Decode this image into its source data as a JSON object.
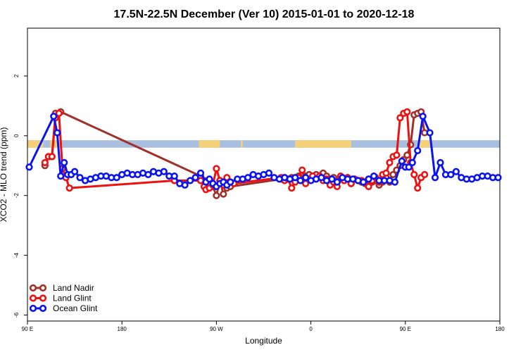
{
  "chart_data": {
    "type": "line",
    "title": "17.5N-22.5N December (Ver 10)   2015-01-01 to 2020-12-18",
    "xlabel": "Longitude",
    "ylabel": "XCO2 - MLO trend (ppm)",
    "xlim": [
      -90,
      180
    ],
    "ylim": [
      -6.2,
      3.6
    ],
    "x_ticks": [
      {
        "value": -90,
        "label": "90 E"
      },
      {
        "value": -36,
        "label": "180"
      },
      {
        "value": 18,
        "label": "90 W"
      },
      {
        "value": 72,
        "label": "0"
      },
      {
        "value": 126,
        "label": "90 E"
      },
      {
        "value": 180,
        "label": "180"
      }
    ],
    "y_ticks": [
      {
        "value": -6,
        "label": "-6"
      },
      {
        "value": -4,
        "label": "-4"
      },
      {
        "value": -2,
        "label": "-2"
      },
      {
        "value": 0,
        "label": "0"
      },
      {
        "value": 2,
        "label": "2"
      }
    ],
    "grid": false,
    "legend_position": "bottom-left",
    "land_ocean_strip": {
      "y_range": [
        -0.4,
        -0.15
      ],
      "ocean_color": "#a8bfe0",
      "land_color": "#f5d27a",
      "land_segments": [
        [
          -90,
          -81
        ],
        [
          -77,
          -71
        ],
        [
          8,
          20
        ],
        [
          32,
          33
        ],
        [
          63,
          95
        ],
        [
          134,
          140
        ]
      ]
    },
    "series": [
      {
        "name": "Land Nadir",
        "color": "#a0302a",
        "x": [
          -80,
          -78,
          -76,
          -74,
          -71,
          9,
          11,
          12,
          14,
          16,
          18,
          20,
          22,
          24,
          26,
          55,
          57,
          59,
          61,
          63,
          65,
          67,
          69,
          71,
          73,
          75,
          77,
          79,
          81,
          83,
          85,
          87,
          89,
          91,
          93,
          95,
          97,
          99,
          101,
          103,
          105,
          107,
          109,
          111,
          113,
          115,
          117,
          119,
          121,
          123,
          125,
          127,
          129,
          131,
          133,
          135,
          137
        ],
        "y": [
          -1.0,
          -0.7,
          -0.7,
          0.75,
          0.8,
          -1.35,
          -1.5,
          -1.7,
          -1.75,
          -1.7,
          -2.0,
          -1.5,
          -1.95,
          -1.75,
          -1.7,
          -1.45,
          -1.4,
          -1.45,
          -1.4,
          -1.5,
          -1.35,
          -1.5,
          -1.35,
          -1.3,
          -1.4,
          -1.3,
          -1.35,
          -1.25,
          -1.35,
          -1.45,
          -1.4,
          -1.55,
          -1.45,
          -1.5,
          -1.4,
          -1.6,
          -1.45,
          -1.5,
          -1.55,
          -1.6,
          -1.45,
          -1.55,
          -1.5,
          -1.65,
          -1.55,
          -1.4,
          -1.55,
          -1.3,
          -1.15,
          -1.0,
          -0.8,
          -0.65,
          -0.3,
          0.7,
          0.75,
          0.8,
          0.1
        ]
      },
      {
        "name": "Land Glint",
        "color": "#ee1111",
        "x": [
          -80,
          -78,
          -76,
          -74,
          -72,
          -70,
          -68,
          -66,
          -6,
          9,
          11,
          12,
          14,
          16,
          18,
          20,
          22,
          24,
          26,
          28,
          55,
          57,
          59,
          61,
          63,
          65,
          67,
          69,
          71,
          73,
          75,
          77,
          79,
          81,
          83,
          85,
          87,
          89,
          91,
          93,
          95,
          97,
          99,
          101,
          103,
          105,
          107,
          109,
          111,
          113,
          115,
          117,
          119,
          121,
          123,
          125,
          127,
          129,
          131,
          133,
          135,
          137
        ],
        "y": [
          -0.9,
          -0.7,
          -0.7,
          0.6,
          0.75,
          -1.1,
          -1.4,
          -1.75,
          -1.5,
          -1.5,
          -1.7,
          -1.8,
          -1.75,
          -1.65,
          -1.1,
          -1.5,
          -1.65,
          -1.4,
          -1.55,
          -1.6,
          -1.4,
          -1.5,
          -1.45,
          -1.75,
          -1.55,
          -1.4,
          -1.15,
          -1.6,
          -1.45,
          -1.35,
          -1.45,
          -1.35,
          -1.5,
          -1.45,
          -1.65,
          -1.55,
          -1.7,
          -1.35,
          -1.5,
          -1.4,
          -1.6,
          -1.45,
          -1.5,
          -1.5,
          -1.55,
          -1.7,
          -1.5,
          -1.4,
          -1.55,
          -1.3,
          -1.25,
          -0.9,
          -0.7,
          -0.65,
          0.6,
          0.75,
          0.8,
          -0.9,
          -1.3,
          -1.75,
          -1.4,
          -1.3
        ]
      },
      {
        "name": "Ocean Glint",
        "color": "#0a14f0",
        "x": [
          -89,
          -75,
          -73,
          -71,
          -69,
          -67,
          -65,
          -63,
          -60,
          -57,
          -54,
          -51,
          -48,
          -45,
          -42,
          -39,
          -36,
          -33,
          -30,
          -27,
          -24,
          -21,
          -18,
          -15,
          -12,
          -9,
          -6,
          -3,
          0,
          3,
          6,
          9,
          12,
          14,
          16,
          18,
          20,
          22,
          24,
          26,
          30,
          33,
          36,
          39,
          42,
          45,
          48,
          51,
          54,
          57,
          60,
          63,
          66,
          69,
          72,
          75,
          78,
          81,
          84,
          87,
          90,
          93,
          96,
          99,
          102,
          105,
          108,
          111,
          114,
          117,
          120,
          124,
          126,
          128,
          130,
          133,
          136,
          140,
          143,
          146,
          149,
          152,
          155,
          158,
          161,
          164,
          167,
          170,
          173,
          176,
          179
        ],
        "y": [
          -1.05,
          0.65,
          0.1,
          -1.35,
          -0.9,
          -1.3,
          -1.3,
          -1.2,
          -1.4,
          -1.5,
          -1.45,
          -1.4,
          -1.35,
          -1.35,
          -1.4,
          -1.4,
          -1.3,
          -1.25,
          -1.3,
          -1.3,
          -1.25,
          -1.3,
          -1.2,
          -1.25,
          -1.2,
          -1.35,
          -1.35,
          -1.6,
          -1.65,
          -1.5,
          -1.4,
          -1.25,
          -1.55,
          -1.45,
          -1.6,
          -1.7,
          -1.6,
          -1.55,
          -1.65,
          -1.55,
          -1.45,
          -1.45,
          -1.4,
          -1.3,
          -1.35,
          -1.3,
          -1.25,
          -1.4,
          -1.45,
          -1.4,
          -1.45,
          -1.4,
          -1.5,
          -1.4,
          -1.5,
          -1.45,
          -1.4,
          -1.5,
          -1.45,
          -1.55,
          -1.4,
          -1.45,
          -1.45,
          -1.5,
          -1.55,
          -1.45,
          -1.35,
          -1.5,
          -1.5,
          -1.5,
          -1.55,
          -0.85,
          -1.05,
          -1.05,
          -0.9,
          -0.5,
          0.65,
          0.1,
          -1.4,
          -0.9,
          -1.3,
          -1.3,
          -1.2,
          -1.4,
          -1.45,
          -1.45,
          -1.4,
          -1.35,
          -1.35,
          -1.4,
          -1.4
        ]
      }
    ]
  }
}
